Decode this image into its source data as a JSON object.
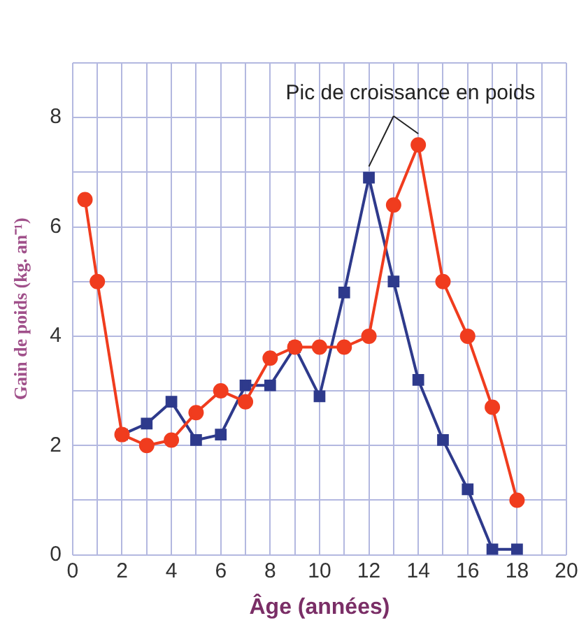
{
  "chart_data": {
    "type": "line",
    "xlabel": "Âge (années)",
    "ylabel": "Gain de poids (kg. an⁻¹)",
    "annotations": [
      "Pic de croissance en poids"
    ],
    "series": [
      {
        "color": "#f03c1e",
        "marker": "circle",
        "x": [
          0.5,
          1,
          2,
          3,
          4,
          5,
          6,
          7,
          8,
          9,
          10,
          11,
          12,
          13,
          14,
          15,
          16,
          17,
          18
        ],
        "values": [
          6.5,
          5.0,
          2.2,
          2.0,
          2.1,
          2.6,
          3.0,
          2.8,
          3.6,
          3.8,
          3.8,
          3.8,
          4.0,
          6.4,
          7.5,
          5.0,
          4.0,
          2.7,
          1.0
        ]
      },
      {
        "color": "#2e3a8c",
        "marker": "square",
        "x": [
          2,
          3,
          4,
          5,
          6,
          7,
          8,
          9,
          10,
          11,
          12,
          13,
          14,
          15,
          16,
          17,
          18
        ],
        "values": [
          2.2,
          2.4,
          2.8,
          2.1,
          2.2,
          3.1,
          3.1,
          3.8,
          2.9,
          4.8,
          6.9,
          5.0,
          3.2,
          2.1,
          1.2,
          0.1,
          0.1
        ]
      }
    ],
    "xlim": [
      0,
      20
    ],
    "xticks": [
      0,
      {
        "value": 1,
        "label": null
      },
      2,
      {
        "value": 3,
        "label": null
      },
      4,
      {
        "value": 5,
        "label": null
      },
      6,
      {
        "value": 7,
        "label": null
      },
      8,
      {
        "value": 9,
        "label": null
      },
      10,
      {
        "value": 11,
        "label": null
      },
      12,
      {
        "value": 13,
        "label": null
      },
      14,
      {
        "value": 15,
        "label": null
      },
      16,
      {
        "value": 17,
        "label": null
      },
      18,
      {
        "value": 19,
        "label": null
      },
      20
    ],
    "ylim": [
      0,
      9
    ],
    "yticks": [
      0,
      {
        "value": 1,
        "label": null
      },
      2,
      {
        "value": 3,
        "label": null
      },
      4,
      {
        "value": 5,
        "label": null
      },
      6,
      {
        "value": 7,
        "label": null
      },
      8,
      {
        "value": 9,
        "label": null
      }
    ],
    "grid": true,
    "legend": false,
    "line_style": "solid"
  }
}
